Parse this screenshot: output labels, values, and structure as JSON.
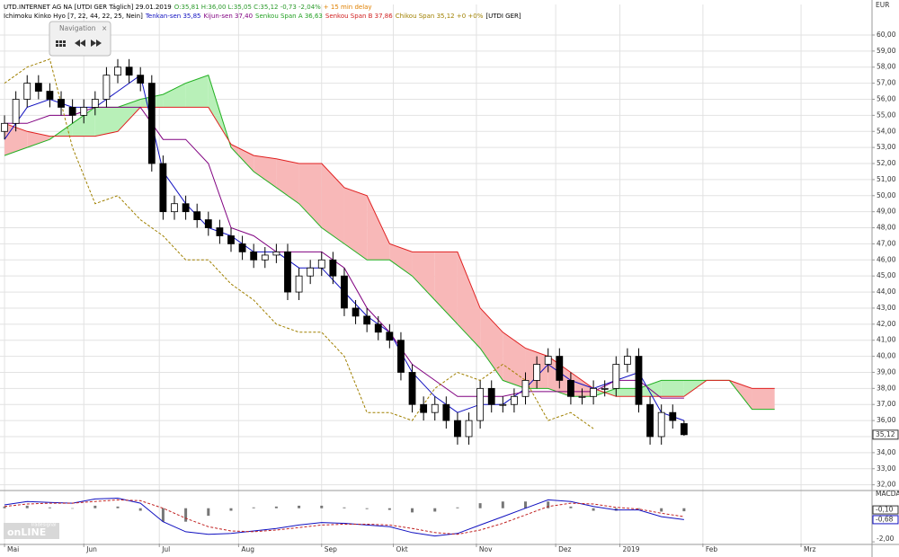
{
  "chart_data": {
    "type": "candlestick",
    "title_parts": [
      {
        "text": "UTD.INTERNET AG NA [UTDI GER Täglich] 29.01.2019",
        "color": "#000000"
      },
      {
        "text": "O:35,81 H:36,00 L:35,05 C:35,12 -0,73 -2,04%",
        "color": "#2a9a2a"
      },
      {
        "text": "+ 15 min delay",
        "color": "#e08000"
      }
    ],
    "indicator_parts": [
      {
        "text": "Ichimoku Kinko Hyo [7, 22, 44, 22, 25, Nein]",
        "color": "#000000"
      },
      {
        "text": "Tenkan-sen 35,85",
        "color": "#1010c0"
      },
      {
        "text": "Kijun-sen 37,40",
        "color": "#800080"
      },
      {
        "text": "Senkou Span A 36,63",
        "color": "#22a022"
      },
      {
        "text": "Senkou Span B 37,86",
        "color": "#d02020"
      },
      {
        "text": "Chikou Span 35,12 +0 +0%",
        "color": "#a08000"
      },
      {
        "text": "[UTDI GER]",
        "color": "#000000"
      }
    ],
    "navigation_label": "Navigation",
    "currency": "EUR",
    "last_price": {
      "value": 35.12,
      "label": "35,12"
    },
    "logo": {
      "small": "Tradesignal",
      "big": "onLINE"
    },
    "xlim": [
      -1.2,
      229.8
    ],
    "xticks": [
      {
        "value": 0,
        "label": "Mai"
      },
      {
        "value": 21,
        "label": "Jun"
      },
      {
        "value": 41,
        "label": "Jul"
      },
      {
        "value": 62,
        "label": "Aug"
      },
      {
        "value": 84,
        "label": "Sep"
      },
      {
        "value": 103,
        "label": "Okt"
      },
      {
        "value": 125,
        "label": "Nov"
      },
      {
        "value": 146,
        "label": "Dez"
      },
      {
        "value": 163,
        "label": "2019"
      },
      {
        "value": 185,
        "label": "Feb"
      },
      {
        "value": 211,
        "label": "Mrz"
      }
    ],
    "ylim": [
      31.7,
      61.9
    ],
    "yticks": [
      {
        "value": 32,
        "label": "32,00"
      },
      {
        "value": 33,
        "label": "33,00"
      },
      {
        "value": 34,
        "label": "34,00"
      },
      {
        "value": 35,
        "label": "35,00"
      },
      {
        "value": 36,
        "label": "36,00"
      },
      {
        "value": 37,
        "label": "37,00"
      },
      {
        "value": 38,
        "label": "38,00"
      },
      {
        "value": 39,
        "label": "39,00"
      },
      {
        "value": 40,
        "label": "40,00"
      },
      {
        "value": 41,
        "label": "41,00"
      },
      {
        "value": 42,
        "label": "42,00"
      },
      {
        "value": 43,
        "label": "43,00"
      },
      {
        "value": 44,
        "label": "44,00"
      },
      {
        "value": 45,
        "label": "45,00"
      },
      {
        "value": 46,
        "label": "46,00"
      },
      {
        "value": 47,
        "label": "47,00"
      },
      {
        "value": 48,
        "label": "48,00"
      },
      {
        "value": 49,
        "label": "49,00"
      },
      {
        "value": 50,
        "label": "50,00"
      },
      {
        "value": 51,
        "label": "51,00"
      },
      {
        "value": 52,
        "label": "52,00"
      },
      {
        "value": 53,
        "label": "53,00"
      },
      {
        "value": 54,
        "label": "54,00"
      },
      {
        "value": 55,
        "label": "55,00"
      },
      {
        "value": 56,
        "label": "56,00"
      },
      {
        "value": 57,
        "label": "57,00"
      },
      {
        "value": 58,
        "label": "58,00"
      },
      {
        "value": 59,
        "label": "59,00"
      },
      {
        "value": 60,
        "label": "60,00"
      }
    ],
    "grid": true,
    "candles": {
      "x": [
        0,
        3,
        6,
        9,
        12,
        15,
        18,
        21,
        24,
        27,
        30,
        33,
        36,
        39,
        42,
        45,
        48,
        51,
        54,
        57,
        60,
        63,
        66,
        69,
        72,
        75,
        78,
        81,
        84,
        87,
        90,
        93,
        96,
        99,
        102,
        105,
        108,
        111,
        114,
        117,
        120,
        123,
        126,
        129,
        132,
        135,
        138,
        141,
        144,
        147,
        150,
        153,
        156,
        159,
        162,
        165,
        168,
        171,
        174,
        177,
        180
      ],
      "open": [
        54,
        54.5,
        56,
        57,
        56.5,
        56,
        55.5,
        55,
        55.5,
        56,
        57.5,
        58,
        57.5,
        57,
        52,
        49,
        49.5,
        49,
        48.5,
        48,
        47.5,
        47,
        46.5,
        46,
        46.3,
        46.5,
        44,
        45,
        45.5,
        46,
        45,
        43,
        42.5,
        42,
        41.5,
        41,
        39,
        37,
        36.5,
        37,
        36,
        35,
        36,
        38,
        37,
        37,
        37.5,
        38.5,
        39.5,
        40,
        38.5,
        37.5,
        37.5,
        38,
        38,
        39.5,
        40,
        37,
        35,
        36.5,
        35.81
      ],
      "high": [
        55,
        56.5,
        57.5,
        57.5,
        57,
        56.5,
        56,
        56,
        56.5,
        58,
        58.5,
        58.5,
        58,
        57.5,
        52.5,
        50,
        50,
        49.5,
        49,
        48.5,
        48,
        47.5,
        47,
        46.8,
        47,
        47,
        45.5,
        46,
        46.5,
        46.5,
        45.5,
        43.5,
        43,
        42.5,
        42,
        41.5,
        39.5,
        37.5,
        37.5,
        37.5,
        36.5,
        36.5,
        38.5,
        38.5,
        37.5,
        38,
        39,
        40,
        40.5,
        40.5,
        39,
        38,
        38.5,
        38.5,
        40,
        40.5,
        40.5,
        37.5,
        37,
        37,
        36.0
      ],
      "low": [
        53.5,
        54,
        55.5,
        56,
        55.5,
        55,
        54.5,
        54.5,
        55,
        55.5,
        57,
        57,
        56.5,
        51.5,
        48.5,
        48.5,
        48.5,
        48,
        47.5,
        47,
        46.5,
        46,
        45.5,
        45.5,
        45.8,
        43.5,
        43.5,
        44.5,
        45,
        44.5,
        42.5,
        42,
        41.5,
        41,
        40.5,
        38.5,
        36.5,
        36,
        36,
        35.5,
        34.5,
        34.5,
        35.5,
        36.5,
        36.5,
        36.5,
        37,
        38,
        39,
        38,
        37,
        37,
        37,
        37.5,
        37.5,
        39,
        36.5,
        34.5,
        34.5,
        35.5,
        35.05
      ],
      "close": [
        54.5,
        56,
        57,
        56.5,
        56,
        55.5,
        55,
        55.5,
        56,
        57.5,
        58,
        57.5,
        57,
        52,
        49,
        49.5,
        49,
        48.5,
        48,
        47.5,
        47,
        46.5,
        46,
        46.3,
        46.5,
        44,
        45,
        45.5,
        46,
        45,
        43,
        42.5,
        42,
        41.5,
        41,
        39,
        37,
        36.5,
        37,
        36,
        35,
        36,
        38,
        37,
        37,
        37.5,
        38.5,
        39.5,
        40,
        38.5,
        37.5,
        37.5,
        38,
        38,
        39.5,
        40,
        37,
        35,
        36.5,
        36,
        35.12
      ],
      "up_color": "#ffffff",
      "down_color": "#000000"
    },
    "cloud": {
      "x": [
        0,
        6,
        12,
        18,
        24,
        30,
        36,
        42,
        48,
        54,
        60,
        66,
        72,
        78,
        84,
        90,
        96,
        102,
        108,
        114,
        120,
        126,
        132,
        138,
        144,
        150,
        156,
        162,
        168,
        174,
        180,
        186,
        192,
        198,
        204
      ],
      "span_a": [
        52.5,
        53,
        53.5,
        54.5,
        55.5,
        55.5,
        56,
        56.3,
        57,
        57.5,
        53,
        51.5,
        50.5,
        49.5,
        48,
        47,
        46,
        46,
        45,
        43.5,
        42,
        40.5,
        38.5,
        38,
        38,
        37.5,
        37.5,
        38,
        38,
        38.5,
        38.5,
        38.5,
        38.5,
        36.7,
        36.7
      ],
      "span_b": [
        54.5,
        54,
        53.7,
        53.7,
        53.7,
        54,
        55.5,
        55.5,
        55.5,
        55.5,
        53.2,
        52.5,
        52.3,
        52,
        52,
        50.5,
        50,
        47,
        46.5,
        46.5,
        46.5,
        43,
        41.5,
        40.5,
        40,
        39,
        38,
        37.5,
        37.5,
        37.5,
        37.5,
        38.5,
        38.5,
        38,
        38
      ],
      "color_a": "#22b022",
      "color_b": "#e02020",
      "fill_up": "#b8f0b8",
      "fill_down": "#f8b8b8"
    },
    "lines": [
      {
        "color": "#1010c0",
        "dash": false,
        "x": [
          0,
          6,
          12,
          18,
          24,
          30,
          36,
          42,
          48,
          54,
          60,
          66,
          72,
          78,
          84,
          90,
          96,
          102,
          108,
          114,
          120,
          126,
          132,
          138,
          144,
          150,
          156,
          162,
          168,
          174,
          180
        ],
        "values": [
          53.5,
          55.5,
          56,
          55.5,
          55.5,
          56.5,
          57.5,
          51.5,
          49.5,
          48,
          47.5,
          46.5,
          46.5,
          45.5,
          45.5,
          44,
          42.5,
          41.5,
          39,
          37.5,
          36.5,
          37,
          37,
          38,
          39.5,
          38.5,
          38,
          38.5,
          39,
          36.5,
          36
        ]
      },
      {
        "color": "#800080",
        "dash": false,
        "x": [
          0,
          6,
          12,
          18,
          24,
          30,
          36,
          42,
          48,
          54,
          60,
          66,
          72,
          78,
          84,
          90,
          96,
          102,
          108,
          114,
          120,
          126,
          132,
          138,
          144,
          150,
          156,
          162,
          168,
          174,
          180
        ],
        "values": [
          54.5,
          54.5,
          55,
          55,
          55.5,
          55.5,
          55.5,
          53.5,
          53.5,
          52,
          48,
          47.5,
          46.5,
          46.5,
          46.5,
          45.5,
          43,
          41.5,
          39.5,
          38.5,
          37.5,
          37.5,
          37.5,
          37.8,
          37.8,
          37.8,
          37.8,
          38.5,
          38.5,
          37.4,
          37.4
        ]
      },
      {
        "color": "#a08000",
        "dash": true,
        "x": [
          0,
          6,
          12,
          18,
          24,
          30,
          36,
          42,
          48,
          54,
          60,
          66,
          72,
          78,
          84,
          90,
          96,
          102,
          108,
          114,
          120,
          126,
          132,
          138,
          144,
          150,
          156
        ],
        "values": [
          57,
          58,
          58.5,
          53,
          49.5,
          50,
          48.5,
          47.5,
          46,
          46,
          44.5,
          43.5,
          42,
          41.5,
          41.5,
          40,
          36.5,
          36.5,
          36,
          38,
          39,
          38.5,
          39.5,
          38.5,
          36,
          36.5,
          35.5
        ]
      }
    ],
    "macd": {
      "label": "MACDA",
      "ylim": [
        -2.1,
        1.0
      ],
      "yticks": [
        {
          "value": -2,
          "label": "-2,00"
        }
      ],
      "current_labels": [
        {
          "value": -0.1,
          "label": "-0,10"
        },
        {
          "value": -0.68,
          "label": "-0,68"
        }
      ],
      "x": [
        0,
        6,
        12,
        18,
        24,
        30,
        36,
        42,
        48,
        54,
        60,
        66,
        72,
        78,
        84,
        90,
        96,
        102,
        108,
        114,
        120,
        126,
        132,
        138,
        144,
        150,
        156,
        162,
        168,
        174,
        180
      ],
      "macd": [
        0.2,
        0.4,
        0.35,
        0.3,
        0.55,
        0.6,
        0.3,
        -0.8,
        -1.4,
        -1.55,
        -1.5,
        -1.35,
        -1.2,
        -1.0,
        -0.85,
        -0.9,
        -1.0,
        -1.1,
        -1.45,
        -1.65,
        -1.5,
        -1.0,
        -0.5,
        0.0,
        0.5,
        0.4,
        0.1,
        -0.1,
        -0.1,
        -0.5,
        -0.68
      ],
      "signal": [
        0.1,
        0.25,
        0.3,
        0.3,
        0.4,
        0.5,
        0.45,
        0.0,
        -0.6,
        -1.1,
        -1.35,
        -1.4,
        -1.3,
        -1.15,
        -1.0,
        -0.95,
        -0.95,
        -1.0,
        -1.2,
        -1.45,
        -1.55,
        -1.3,
        -0.9,
        -0.4,
        0.1,
        0.3,
        0.25,
        0.05,
        -0.05,
        -0.3,
        -0.5
      ],
      "histogram": [
        0.1,
        0.15,
        0.05,
        0,
        0.15,
        0.1,
        -0.15,
        -0.8,
        -0.8,
        -0.45,
        -0.15,
        0.05,
        0.1,
        0.15,
        0.15,
        0.05,
        -0.05,
        -0.1,
        -0.25,
        -0.2,
        0.05,
        0.3,
        0.4,
        0.4,
        0.4,
        0.1,
        -0.15,
        -0.15,
        -0.05,
        -0.2,
        -0.18
      ],
      "macd_color": "#1010c0",
      "signal_color": "#c02020",
      "hist_color": "#777777"
    }
  }
}
